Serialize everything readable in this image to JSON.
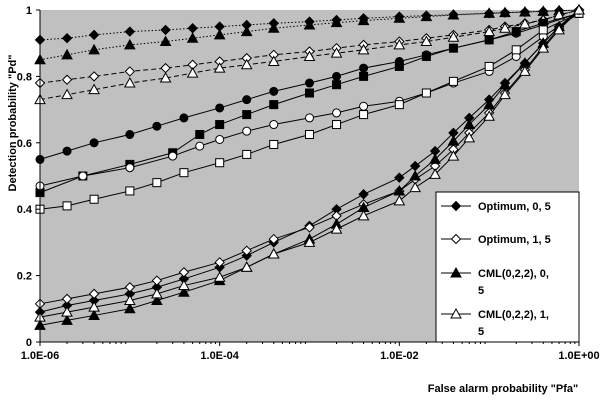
{
  "chart_data": {
    "type": "line",
    "xlabel": "False alarm probability  \"Pfa\"",
    "ylabel": "Detection  probability  \"Pd\"",
    "xscale": "log",
    "xlim": [
      1e-06,
      1
    ],
    "ylim": [
      0,
      1
    ],
    "x_ticks": [
      {
        "value": 1e-06,
        "label": "1.0E-06"
      },
      {
        "value": 0.0001,
        "label": "1.0E-04"
      },
      {
        "value": 0.01,
        "label": "1.0E-02"
      },
      {
        "value": 1,
        "label": "1.0E+00"
      }
    ],
    "y_ticks": [
      {
        "value": 0,
        "label": "0"
      },
      {
        "value": 0.2,
        "label": "0.2"
      },
      {
        "value": 0.4,
        "label": "0.4"
      },
      {
        "value": 0.6,
        "label": "0.6"
      },
      {
        "value": 0.8,
        "label": "0.8"
      },
      {
        "value": 1,
        "label": "1"
      }
    ],
    "grid": false,
    "plot_background": "#c0c0c0",
    "legend_position": "right",
    "legend": [
      {
        "label": "Optimum, 0, 5",
        "lines": [
          "Optimum, 0, 5"
        ],
        "marker": "diamond",
        "fill": "#000000",
        "line": "solid"
      },
      {
        "label": "Optimum, 1, 5",
        "lines": [
          "Optimum, 1, 5"
        ],
        "marker": "diamond",
        "fill": "#ffffff",
        "line": "solid"
      },
      {
        "label": "CML(0,2,2), 0, 5",
        "lines": [
          "CML(0,2,2), 0,",
          "5"
        ],
        "marker": "triangle",
        "fill": "#000000",
        "line": "solid"
      },
      {
        "label": "CML(0,2,2), 1, 5",
        "lines": [
          "CML(0,2,2), 1,",
          "5"
        ],
        "marker": "triangle",
        "fill": "#ffffff",
        "line": "solid"
      }
    ],
    "series": [
      {
        "marker": "diamond",
        "fill": "#000000",
        "line": "dotted",
        "x": [
          1e-06,
          2e-06,
          4e-06,
          1e-05,
          2.5e-05,
          5e-05,
          0.0001,
          0.0002,
          0.0004,
          0.001,
          0.002,
          0.004,
          0.01,
          0.02,
          0.04,
          0.1,
          0.15,
          0.25,
          0.4,
          0.6,
          1
        ],
        "y": [
          0.91,
          0.915,
          0.925,
          0.935,
          0.94,
          0.945,
          0.95,
          0.955,
          0.96,
          0.965,
          0.97,
          0.975,
          0.98,
          0.983,
          0.986,
          0.99,
          0.992,
          0.994,
          0.996,
          0.998,
          1.0
        ]
      },
      {
        "marker": "triangle",
        "fill": "#000000",
        "line": "dotted",
        "x": [
          1e-06,
          2e-06,
          4e-06,
          1e-05,
          2.5e-05,
          5e-05,
          0.0001,
          0.0002,
          0.0004,
          0.001,
          0.002,
          0.004,
          0.01,
          0.02,
          0.04,
          0.1,
          0.15,
          0.25,
          0.4,
          0.6,
          1
        ],
        "y": [
          0.85,
          0.865,
          0.88,
          0.895,
          0.905,
          0.915,
          0.925,
          0.935,
          0.945,
          0.955,
          0.962,
          0.968,
          0.975,
          0.98,
          0.985,
          0.99,
          0.992,
          0.994,
          0.996,
          0.998,
          1.0
        ]
      },
      {
        "marker": "diamond",
        "fill": "#ffffff",
        "line": "dashed",
        "x": [
          1e-06,
          2e-06,
          4e-06,
          1e-05,
          2.5e-05,
          5e-05,
          0.0001,
          0.0002,
          0.0004,
          0.001,
          0.002,
          0.004,
          0.01,
          0.02,
          0.04,
          0.1,
          0.15,
          0.25,
          0.4,
          0.6,
          1
        ],
        "y": [
          0.78,
          0.79,
          0.8,
          0.815,
          0.825,
          0.835,
          0.845,
          0.855,
          0.865,
          0.875,
          0.885,
          0.895,
          0.905,
          0.915,
          0.925,
          0.94,
          0.95,
          0.96,
          0.97,
          0.985,
          1.0
        ]
      },
      {
        "marker": "triangle",
        "fill": "#ffffff",
        "line": "dashed",
        "x": [
          1e-06,
          2e-06,
          4e-06,
          1e-05,
          2.5e-05,
          5e-05,
          0.0001,
          0.0002,
          0.0004,
          0.001,
          0.002,
          0.004,
          0.01,
          0.02,
          0.04,
          0.1,
          0.15,
          0.25,
          0.4,
          0.6,
          1
        ],
        "y": [
          0.73,
          0.745,
          0.76,
          0.78,
          0.795,
          0.81,
          0.825,
          0.835,
          0.845,
          0.86,
          0.87,
          0.88,
          0.895,
          0.905,
          0.918,
          0.935,
          0.945,
          0.958,
          0.97,
          0.985,
          1.0
        ]
      },
      {
        "marker": "circle",
        "fill": "#000000",
        "line": "solid",
        "x": [
          1e-06,
          2e-06,
          4e-06,
          1e-05,
          2e-05,
          4e-05,
          0.0001,
          0.0002,
          0.0004,
          0.001,
          0.002,
          0.004,
          0.01,
          0.02,
          0.04,
          0.1,
          0.2,
          0.4,
          1
        ],
        "y": [
          0.55,
          0.575,
          0.6,
          0.625,
          0.65,
          0.675,
          0.705,
          0.73,
          0.755,
          0.78,
          0.8,
          0.825,
          0.845,
          0.865,
          0.885,
          0.91,
          0.93,
          0.955,
          0.99
        ]
      },
      {
        "marker": "square",
        "fill": "#000000",
        "line": "solid",
        "x": [
          1e-06,
          3e-06,
          1e-05,
          3e-05,
          6e-05,
          0.0001,
          0.0002,
          0.0004,
          0.001,
          0.002,
          0.004,
          0.01,
          0.02,
          0.04,
          0.1,
          0.2,
          0.4,
          1
        ],
        "y": [
          0.45,
          0.5,
          0.535,
          0.57,
          0.625,
          0.655,
          0.685,
          0.715,
          0.75,
          0.775,
          0.8,
          0.83,
          0.86,
          0.885,
          0.91,
          0.935,
          0.96,
          0.99
        ]
      },
      {
        "marker": "circle",
        "fill": "#ffffff",
        "line": "solid",
        "x": [
          1e-06,
          3e-06,
          1e-05,
          3e-05,
          6e-05,
          0.0001,
          0.0002,
          0.0004,
          0.001,
          0.002,
          0.004,
          0.01,
          0.02,
          0.04,
          0.1,
          0.2,
          0.4,
          1
        ],
        "y": [
          0.47,
          0.5,
          0.525,
          0.56,
          0.59,
          0.61,
          0.635,
          0.655,
          0.675,
          0.69,
          0.71,
          0.725,
          0.75,
          0.78,
          0.815,
          0.86,
          0.92,
          0.99
        ]
      },
      {
        "marker": "square",
        "fill": "#ffffff",
        "line": "solid",
        "x": [
          1e-06,
          2e-06,
          4e-06,
          1e-05,
          2e-05,
          4e-05,
          0.0001,
          0.0002,
          0.0004,
          0.001,
          0.002,
          0.004,
          0.01,
          0.02,
          0.04,
          0.1,
          0.2,
          0.4,
          1
        ],
        "y": [
          0.4,
          0.41,
          0.43,
          0.455,
          0.48,
          0.51,
          0.54,
          0.565,
          0.595,
          0.625,
          0.655,
          0.685,
          0.715,
          0.75,
          0.785,
          0.83,
          0.88,
          0.94,
          0.99
        ]
      },
      {
        "marker": "diamond",
        "fill": "#000000",
        "line": "solid",
        "x": [
          1e-06,
          2e-06,
          4e-06,
          1e-05,
          2e-05,
          4e-05,
          0.0001,
          0.0002,
          0.0004,
          0.001,
          0.002,
          0.004,
          0.01,
          0.015,
          0.025,
          0.04,
          0.06,
          0.1,
          0.15,
          0.25,
          0.4,
          0.6,
          1
        ],
        "y": [
          0.09,
          0.11,
          0.125,
          0.145,
          0.165,
          0.19,
          0.225,
          0.26,
          0.3,
          0.35,
          0.4,
          0.445,
          0.495,
          0.53,
          0.575,
          0.63,
          0.675,
          0.73,
          0.78,
          0.84,
          0.9,
          0.95,
          1.0
        ]
      },
      {
        "marker": "diamond",
        "fill": "#ffffff",
        "line": "solid",
        "x": [
          1e-06,
          2e-06,
          4e-06,
          1e-05,
          2e-05,
          4e-05,
          0.0001,
          0.0002,
          0.0004,
          0.001,
          0.002,
          0.004,
          0.01,
          0.015,
          0.025,
          0.04,
          0.06,
          0.1,
          0.15,
          0.25,
          0.4,
          0.6,
          1
        ],
        "y": [
          0.115,
          0.13,
          0.145,
          0.165,
          0.185,
          0.21,
          0.24,
          0.275,
          0.31,
          0.345,
          0.38,
          0.415,
          0.455,
          0.49,
          0.53,
          0.58,
          0.63,
          0.69,
          0.75,
          0.82,
          0.89,
          0.945,
          1.0
        ]
      },
      {
        "marker": "triangle",
        "fill": "#000000",
        "line": "solid",
        "x": [
          1e-06,
          2e-06,
          4e-06,
          1e-05,
          2e-05,
          4e-05,
          0.0001,
          0.0002,
          0.0004,
          0.001,
          0.002,
          0.004,
          0.01,
          0.015,
          0.025,
          0.04,
          0.06,
          0.1,
          0.15,
          0.25,
          0.4,
          0.6,
          1
        ],
        "y": [
          0.05,
          0.065,
          0.08,
          0.1,
          0.125,
          0.15,
          0.185,
          0.225,
          0.265,
          0.31,
          0.355,
          0.405,
          0.455,
          0.5,
          0.55,
          0.605,
          0.655,
          0.715,
          0.775,
          0.84,
          0.9,
          0.95,
          1.0
        ]
      },
      {
        "marker": "triangle",
        "fill": "#ffffff",
        "line": "solid",
        "x": [
          1e-06,
          2e-06,
          4e-06,
          1e-05,
          2e-05,
          4e-05,
          0.0001,
          0.0002,
          0.0004,
          0.001,
          0.002,
          0.004,
          0.01,
          0.015,
          0.025,
          0.04,
          0.06,
          0.1,
          0.15,
          0.25,
          0.4,
          0.6,
          1
        ],
        "y": [
          0.075,
          0.09,
          0.105,
          0.125,
          0.145,
          0.17,
          0.195,
          0.225,
          0.265,
          0.3,
          0.34,
          0.38,
          0.425,
          0.465,
          0.505,
          0.56,
          0.615,
          0.68,
          0.745,
          0.815,
          0.885,
          0.94,
          1.0
        ]
      }
    ]
  }
}
